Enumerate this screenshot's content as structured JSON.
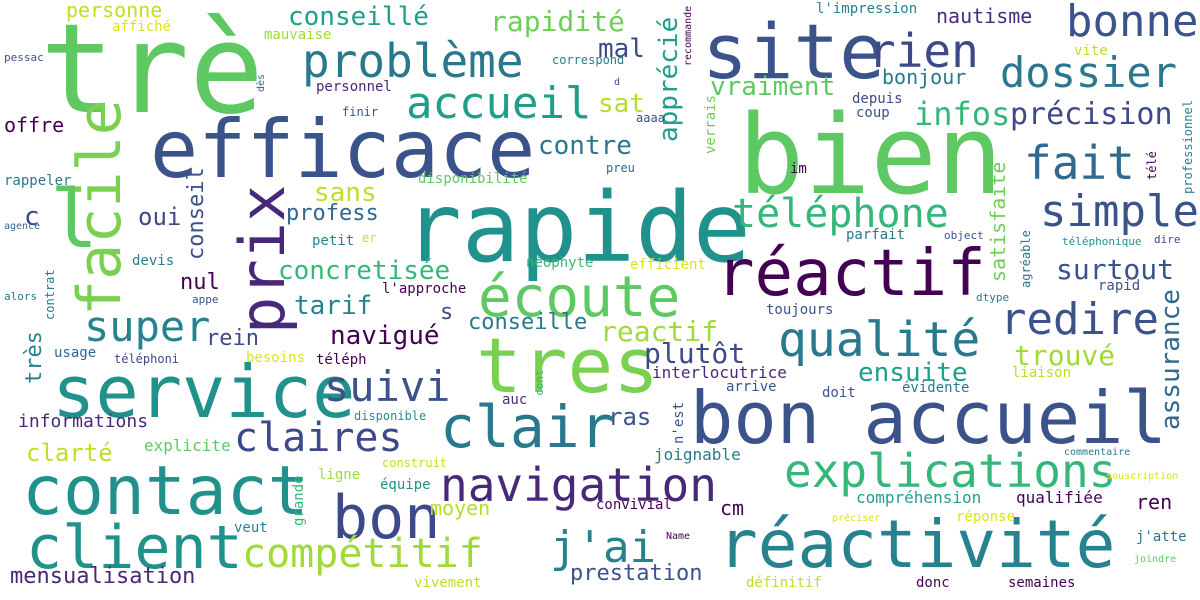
{
  "words": [
    {
      "text": "trè",
      "color": "#5ec962"
    },
    {
      "text": "bien",
      "color": "#5ec962"
    },
    {
      "text": "rapide",
      "color": "#21918c"
    },
    {
      "text": "efficace",
      "color": "#3b528b"
    },
    {
      "text": "site",
      "color": "#3b528b"
    },
    {
      "text": "service",
      "color": "#21918c"
    },
    {
      "text": "tres",
      "color": "#7ad151"
    },
    {
      "text": "bon accueil",
      "color": "#3b528b"
    },
    {
      "text": "contact",
      "color": "#21918c"
    },
    {
      "text": "réactivité",
      "color": "#26828e"
    },
    {
      "text": "réactif",
      "color": "#440154"
    },
    {
      "text": "écoute",
      "color": "#5ec962"
    },
    {
      "text": "prix",
      "color": "#482878"
    },
    {
      "text": "facile",
      "color": "#7ad151"
    },
    {
      "text": "client",
      "color": "#21918c"
    },
    {
      "text": "bon",
      "color": "#3e4989"
    },
    {
      "text": "clair",
      "color": "#2a788e"
    },
    {
      "text": "l",
      "color": "#5ec962"
    },
    {
      "text": "problème",
      "color": "#2a788e"
    },
    {
      "text": "accueil",
      "color": "#1f9e89"
    },
    {
      "text": "explications",
      "color": "#35b779"
    },
    {
      "text": "navigation",
      "color": "#482878"
    },
    {
      "text": "qualité",
      "color": "#2a788e"
    },
    {
      "text": "redire",
      "color": "#3b528b"
    },
    {
      "text": "dossier",
      "color": "#2a788e"
    },
    {
      "text": "bonne",
      "color": "#3b528b"
    },
    {
      "text": "rien",
      "color": "#3e4989"
    },
    {
      "text": "fait",
      "color": "#31688e"
    },
    {
      "text": "simple",
      "color": "#3b528b"
    },
    {
      "text": "téléphone",
      "color": "#35b779"
    },
    {
      "text": "claires",
      "color": "#3e4989"
    },
    {
      "text": "suivi",
      "color": "#3b528b"
    },
    {
      "text": "super",
      "color": "#26828e"
    },
    {
      "text": "compétitif",
      "color": "#a0da39"
    },
    {
      "text": "j'ai",
      "color": "#26828e"
    },
    {
      "text": "assurance",
      "color": "#31688e"
    },
    {
      "text": "mensualisation",
      "color": "#482878"
    },
    {
      "text": "prestation",
      "color": "#3b528b"
    },
    {
      "text": "infos",
      "color": "#35b779"
    },
    {
      "text": "précision",
      "color": "#3e4989"
    },
    {
      "text": "surtout",
      "color": "#3b528b"
    },
    {
      "text": "trouvé",
      "color": "#a0da39"
    },
    {
      "text": "ensuite",
      "color": "#1f9e89"
    },
    {
      "text": "plutôt",
      "color": "#3e4989"
    },
    {
      "text": "reactif",
      "color": "#a0da39"
    },
    {
      "text": "concretisée",
      "color": "#35b779"
    },
    {
      "text": "navigué",
      "color": "#440154"
    },
    {
      "text": "tarif",
      "color": "#26828e"
    },
    {
      "text": "sans",
      "color": "#bddf26"
    },
    {
      "text": "profess",
      "color": "#31688e"
    },
    {
      "text": "oui",
      "color": "#3e4989"
    },
    {
      "text": "c",
      "color": "#3e4989"
    },
    {
      "text": "conseil",
      "color": "#3b528b"
    },
    {
      "text": "nul",
      "color": "#440154"
    },
    {
      "text": "rein",
      "color": "#3e4989"
    },
    {
      "text": "s",
      "color": "#3e4989"
    },
    {
      "text": "conseille",
      "color": "#2a788e"
    },
    {
      "text": "contre",
      "color": "#2a788e"
    },
    {
      "text": "sat",
      "color": "#b5de2b"
    },
    {
      "text": "mal",
      "color": "#3e4989"
    },
    {
      "text": "apprécié",
      "color": "#1f9e89"
    },
    {
      "text": "rapidité",
      "color": "#6ece58"
    },
    {
      "text": "conseillé",
      "color": "#1f9e89"
    },
    {
      "text": "vraiment",
      "color": "#5ec962"
    },
    {
      "text": "bonjour",
      "color": "#2a788e"
    },
    {
      "text": "nautisme",
      "color": "#472d7b"
    },
    {
      "text": "satisfaite",
      "color": "#6ece58"
    },
    {
      "text": "personne",
      "color": "#bddf26"
    },
    {
      "text": "offre",
      "color": "#440154"
    },
    {
      "text": "très",
      "color": "#26828e"
    },
    {
      "text": "informations",
      "color": "#482878"
    },
    {
      "text": "clarté",
      "color": "#bddf26"
    },
    {
      "text": "explicite",
      "color": "#5ec962"
    },
    {
      "text": "joignable",
      "color": "#2a788e"
    },
    {
      "text": "moyen",
      "color": "#b5de2b"
    },
    {
      "text": "cm",
      "color": "#440154"
    },
    {
      "text": "ras",
      "color": "#3b528b"
    },
    {
      "text": "n'est",
      "color": "#3b528b"
    },
    {
      "text": "compréhension",
      "color": "#1f9e89"
    },
    {
      "text": "qualifiée",
      "color": "#440154"
    },
    {
      "text": "ren",
      "color": "#440154"
    },
    {
      "text": "interlocutrice",
      "color": "#482878"
    },
    {
      "text": "arrive",
      "color": "#3b528b"
    },
    {
      "text": "évidente",
      "color": "#2a788e"
    },
    {
      "text": "liaison",
      "color": "#b5de2b"
    },
    {
      "text": "doit",
      "color": "#3b528b"
    },
    {
      "text": "convivial",
      "color": "#440154"
    },
    {
      "text": "donc",
      "color": "#440154"
    },
    {
      "text": "semaines",
      "color": "#440154"
    },
    {
      "text": "définitif",
      "color": "#bddf26"
    },
    {
      "text": "vivement",
      "color": "#bddf26"
    },
    {
      "text": "veut",
      "color": "#26828e"
    },
    {
      "text": "grande",
      "color": "#35b779"
    },
    {
      "text": "ligne",
      "color": "#a0da39"
    },
    {
      "text": "équipe",
      "color": "#21918c"
    },
    {
      "text": "construit",
      "color": "#bddf26"
    },
    {
      "text": "auc",
      "color": "#472d7b"
    },
    {
      "text": "cont",
      "color": "#35b779"
    },
    {
      "text": "disponible",
      "color": "#21918c"
    },
    {
      "text": "usage",
      "color": "#31688e"
    },
    {
      "text": "téléphoni",
      "color": "#3e4989"
    },
    {
      "text": "besoins",
      "color": "#dce319"
    },
    {
      "text": "téléph",
      "color": "#440154"
    },
    {
      "text": "l'approche",
      "color": "#440154"
    },
    {
      "text": "appe",
      "color": "#3b528b"
    },
    {
      "text": "contrat",
      "color": "#2a788e"
    },
    {
      "text": "devis",
      "color": "#26828e"
    },
    {
      "text": "petit",
      "color": "#26828e"
    },
    {
      "text": "er",
      "color": "#bddf26"
    },
    {
      "text": "néophyte",
      "color": "#35b779"
    },
    {
      "text": "efficient",
      "color": "#dce319"
    },
    {
      "text": "disponibilité",
      "color": "#5ec962"
    },
    {
      "text": "preu",
      "color": "#31688e"
    },
    {
      "text": "aaaa",
      "color": "#3e4989"
    },
    {
      "text": "rappeler",
      "color": "#2a788e"
    },
    {
      "text": "agence",
      "color": "#31688e"
    },
    {
      "text": "alors",
      "color": "#2a788e"
    },
    {
      "text": "pessac",
      "color": "#3b528b"
    },
    {
      "text": "dès",
      "color": "#31688e"
    },
    {
      "text": "affiché",
      "color": "#dce319"
    },
    {
      "text": "mauvaise",
      "color": "#a0da39"
    },
    {
      "text": "personnel",
      "color": "#482878"
    },
    {
      "text": "finir",
      "color": "#3b528b"
    },
    {
      "text": "correspond",
      "color": "#2a788e"
    },
    {
      "text": "d",
      "color": "#3e4989"
    },
    {
      "text": "recommande",
      "color": "#440154"
    },
    {
      "text": "verrais",
      "color": "#6ece58"
    },
    {
      "text": "l'impression",
      "color": "#26828e"
    },
    {
      "text": "vite",
      "color": "#bddf26"
    },
    {
      "text": "depuis",
      "color": "#3e4989"
    },
    {
      "text": "coup",
      "color": "#3b528b"
    },
    {
      "text": "im",
      "color": "#440154"
    },
    {
      "text": "parfait",
      "color": "#2a788e"
    },
    {
      "text": "object",
      "color": "#3b528b"
    },
    {
      "text": "agréable",
      "color": "#2a788e"
    },
    {
      "text": "téléphonique",
      "color": "#21918c"
    },
    {
      "text": "dire",
      "color": "#3e4989"
    },
    {
      "text": "rapid",
      "color": "#3b528b"
    },
    {
      "text": "dtype",
      "color": "#2a788e"
    },
    {
      "text": "toujours",
      "color": "#3b528b"
    },
    {
      "text": "professionnel",
      "color": "#26828e"
    },
    {
      "text": "télé",
      "color": "#440154"
    },
    {
      "text": "commentaire",
      "color": "#2a788e"
    },
    {
      "text": "souscription",
      "color": "#dce319"
    },
    {
      "text": "préciser",
      "color": "#dce319"
    },
    {
      "text": "réponse",
      "color": "#dce319"
    },
    {
      "text": "j'atte",
      "color": "#2a788e"
    },
    {
      "text": "joindre",
      "color": "#5ec962"
    },
    {
      "text": "Name",
      "color": "#440154"
    }
  ]
}
